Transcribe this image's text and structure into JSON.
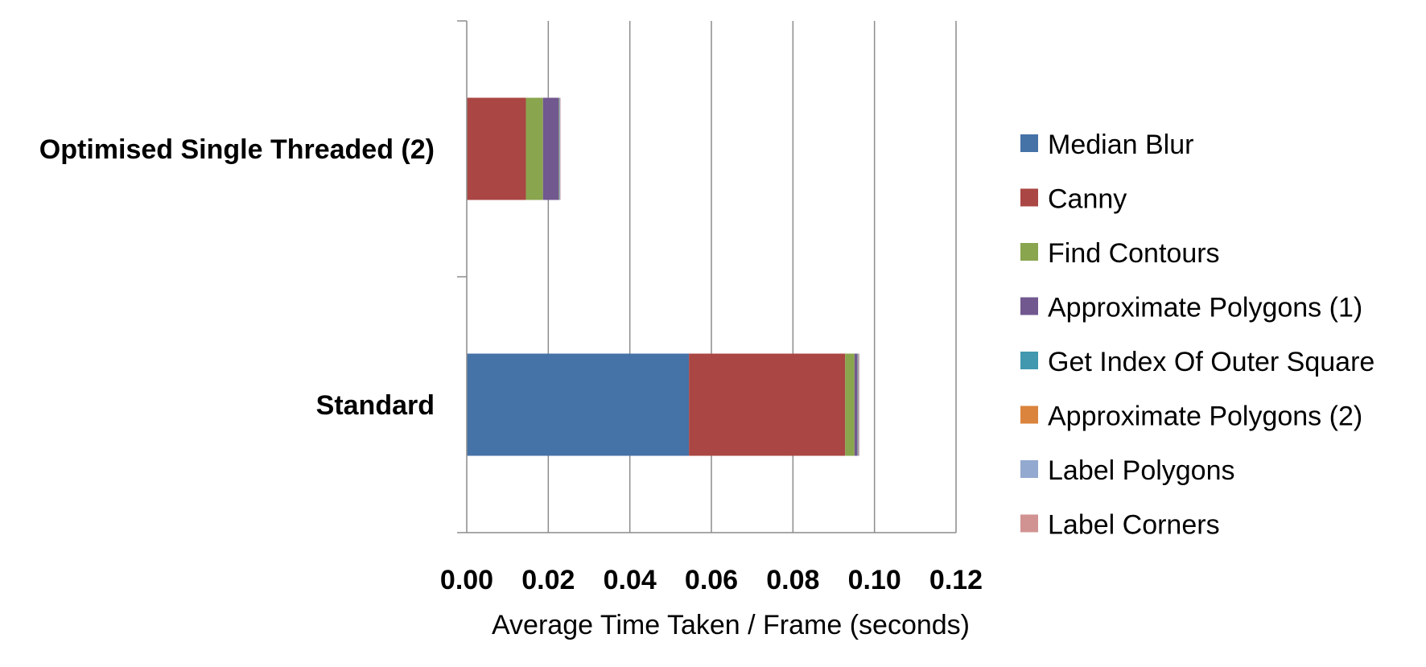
{
  "chart_data": {
    "type": "bar",
    "orientation": "horizontal",
    "stacked": true,
    "categories": [
      "Optimised Single Threaded (2)",
      "Standard"
    ],
    "series": [
      {
        "name": "Median Blur",
        "color": "#4572A7",
        "values": [
          0.0,
          0.0545
        ]
      },
      {
        "name": "Canny",
        "color": "#AA4643",
        "values": [
          0.0145,
          0.0383
        ]
      },
      {
        "name": "Find Contours",
        "color": "#89A54E",
        "values": [
          0.0042,
          0.0023
        ]
      },
      {
        "name": "Approximate Polygons (1)",
        "color": "#71588F",
        "values": [
          0.0038,
          0.0007
        ]
      },
      {
        "name": "Get Index Of Outer Square",
        "color": "#4198AF",
        "values": [
          0.0001,
          0.0001
        ]
      },
      {
        "name": "Approximate Polygons (2)",
        "color": "#DB843D",
        "values": [
          0.0001,
          0.0001
        ]
      },
      {
        "name": "Label Polygons",
        "color": "#93A9CF",
        "values": [
          0.0002,
          0.0002
        ]
      },
      {
        "name": "Label Corners",
        "color": "#D19392",
        "values": [
          0.0001,
          0.0001
        ]
      }
    ],
    "xlabel": "Average Time Taken / Frame (seconds)",
    "ylabel": "",
    "xlim": [
      0,
      0.12
    ],
    "xticks": [
      "0.00",
      "0.02",
      "0.04",
      "0.06",
      "0.08",
      "0.10",
      "0.12"
    ],
    "grid": true,
    "legend": "right"
  }
}
